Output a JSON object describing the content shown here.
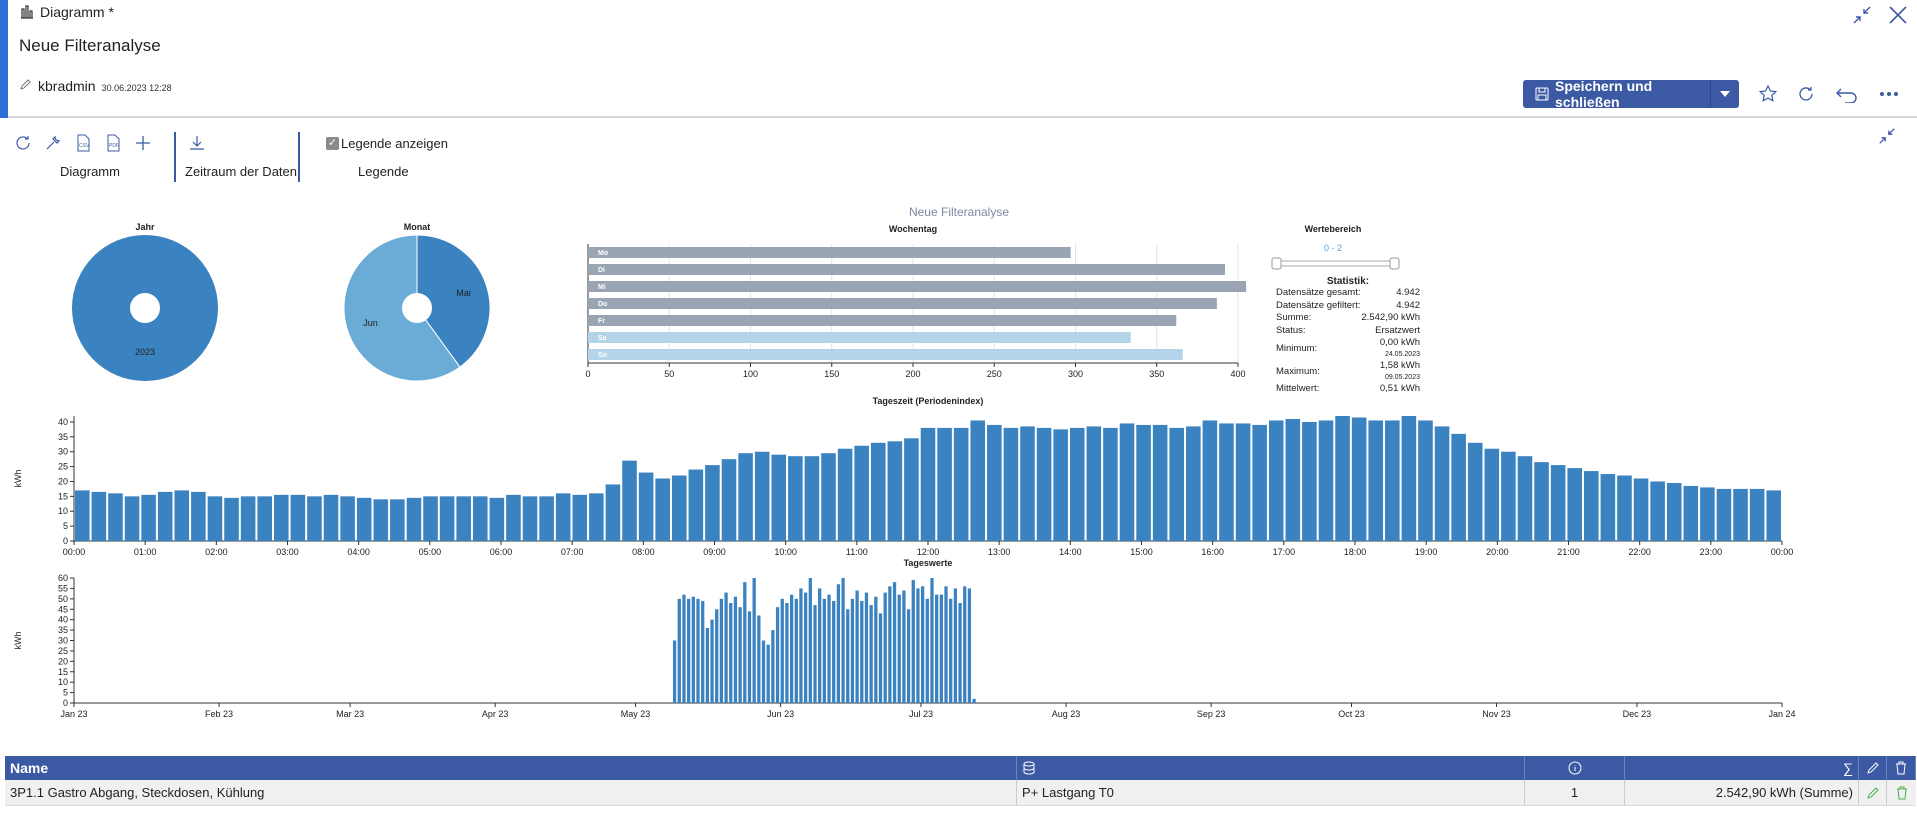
{
  "window": {
    "title": "Diagramm *",
    "page_title": "Neue Filteranalyse",
    "author": "kbradmin",
    "timestamp": "30.06.2023 12:28"
  },
  "actions": {
    "save_label": "Speichern und schließen"
  },
  "toolbar": {
    "diagram_label": "Diagramm",
    "period_label": "Zeitraum der Daten",
    "legend_checkbox": "Legende anzeigen",
    "legend_label": "Legende"
  },
  "colors": {
    "accent": "#2d6fd6",
    "primary": "#3b5aa3",
    "bar": "#3b82c0",
    "pie_light": "#6aacd6",
    "weekday": "#9aa5b4",
    "weekend": "#b3d4e8"
  },
  "stats": {
    "title": "Statistik:",
    "rows": [
      {
        "label": "Datensätze gesamt:",
        "value": "4.942",
        "sub": ""
      },
      {
        "label": "Datensätze gefiltert:",
        "value": "4.942",
        "sub": ""
      },
      {
        "label": "Summe:",
        "value": "2.542,90 kWh",
        "sub": ""
      },
      {
        "label": "Status:",
        "value": "Ersatzwert",
        "sub": ""
      },
      {
        "label": "Minimum:",
        "value": "0,00 kWh",
        "sub": "24.05.2023"
      },
      {
        "label": "Maximum:",
        "value": "1,58 kWh",
        "sub": "09.05.2023"
      },
      {
        "label": "Mittelwert:",
        "value": "0,51 kWh",
        "sub": ""
      }
    ]
  },
  "table": {
    "columns": [
      "Name",
      "",
      "",
      "",
      "",
      ""
    ],
    "rows": [
      {
        "name": "3P1.1 Gastro Abgang, Steckdosen, Kühlung",
        "channel": "P+ Lastgang T0",
        "count": "1",
        "sum": "2.542,90 kWh (Summe)"
      }
    ]
  },
  "chart_data": [
    {
      "type": "pie",
      "title": "Jahr",
      "slices": [
        {
          "label": "2023",
          "value": 100
        }
      ]
    },
    {
      "type": "pie",
      "title": "Monat",
      "slices": [
        {
          "label": "Mai",
          "value": 40
        },
        {
          "label": "Jun",
          "value": 60
        }
      ]
    },
    {
      "type": "bar",
      "orientation": "horizontal",
      "title": "Wochentag",
      "super_title": "Neue Filteranalyse",
      "categories": [
        "Mo",
        "Di",
        "Mi",
        "Do",
        "Fr",
        "Sa",
        "So"
      ],
      "values": [
        297,
        392,
        405,
        387,
        362,
        334,
        366
      ],
      "xlim": [
        0,
        400
      ],
      "xticks": [
        0,
        50,
        100,
        150,
        200,
        250,
        300,
        350,
        400
      ]
    },
    {
      "type": "range",
      "title": "Wertebereich",
      "label": "0 - 2"
    },
    {
      "type": "bar",
      "title": "Tageszeit (Periodenindex)",
      "ylabel": "kWh",
      "ylim": [
        0,
        42
      ],
      "yticks": [
        0,
        5,
        10,
        15,
        20,
        25,
        30,
        35,
        40
      ],
      "xticks": [
        "00:00",
        "01:00",
        "02:00",
        "03:00",
        "04:00",
        "05:00",
        "06:00",
        "07:00",
        "08:00",
        "09:00",
        "10:00",
        "11:00",
        "12:00",
        "13:00",
        "14:00",
        "15:00",
        "16:00",
        "17:00",
        "18:00",
        "19:00",
        "20:00",
        "21:00",
        "22:00",
        "23:00",
        "00:00"
      ],
      "values": [
        17,
        16.5,
        16,
        15,
        15.5,
        16.5,
        17,
        16.5,
        15,
        14.5,
        15,
        15,
        15.5,
        15.5,
        15,
        15.5,
        15,
        14.5,
        14,
        14,
        14.5,
        15,
        15,
        15,
        15,
        14.5,
        15.5,
        15,
        15,
        16,
        15.5,
        16,
        19,
        27,
        23,
        21,
        22,
        24,
        25.5,
        27.5,
        29.5,
        30,
        29,
        28.5,
        28.5,
        29.5,
        31,
        32,
        33,
        33.5,
        34.5,
        38,
        38,
        38,
        40.5,
        39,
        38,
        38.5,
        38,
        37.5,
        38,
        38.5,
        38,
        39.5,
        39,
        39,
        38,
        38.5,
        40.5,
        39.5,
        39.5,
        39,
        40.5,
        41,
        40,
        40.5,
        42,
        41.5,
        40.5,
        40.5,
        42,
        40.5,
        38.5,
        36,
        33,
        31,
        30,
        28.5,
        26.5,
        25.5,
        24.5,
        23.5,
        22.5,
        22,
        21,
        20,
        19.5,
        18.5,
        18,
        17.5,
        17.5,
        17.5,
        17
      ]
    },
    {
      "type": "bar",
      "title": "Tageswerte",
      "ylabel": "kWh",
      "ylim": [
        0,
        60
      ],
      "yticks": [
        0,
        5,
        10,
        15,
        20,
        25,
        30,
        35,
        40,
        45,
        50,
        55,
        60
      ],
      "xticks": [
        "Jan 23",
        "Feb 23",
        "Mar 23",
        "Apr 23",
        "May 23",
        "Jun 23",
        "Jul 23",
        "Aug 23",
        "Sep 23",
        "Oct 23",
        "Nov 23",
        "Dec 23",
        "Jan 24"
      ],
      "x_start": "2023-05-09",
      "values": [
        30,
        50,
        52,
        50,
        51,
        50,
        49,
        36,
        40,
        45,
        50,
        53,
        48,
        51,
        46,
        58,
        44,
        60,
        42,
        30,
        28,
        35,
        46,
        50,
        48,
        52,
        50,
        55,
        53,
        60,
        47,
        55,
        50,
        52,
        49,
        57,
        60,
        45,
        50,
        54,
        49,
        53,
        47,
        51,
        43,
        53,
        56,
        58,
        52,
        54,
        45,
        59,
        55,
        56,
        50,
        60,
        52,
        52,
        56,
        50,
        55,
        48,
        56,
        55,
        2
      ]
    }
  ]
}
